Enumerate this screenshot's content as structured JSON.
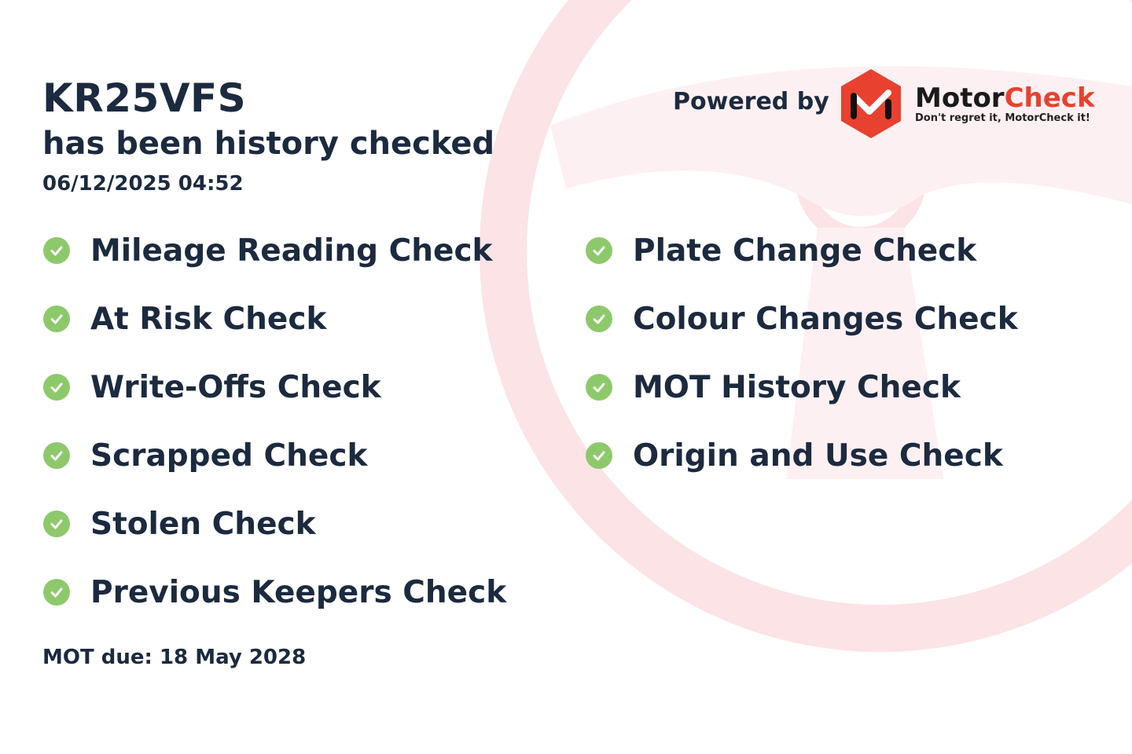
{
  "header": {
    "plate": "KR25VFS",
    "subtitle": "has been history checked",
    "datetime": "06/12/2025 04:52"
  },
  "branding": {
    "powered_by": "Powered by",
    "brand_part1": "Motor",
    "brand_part2": "Check",
    "tagline": "Don't regret it, MotorCheck it!",
    "brand_color": "#e8412f",
    "watermark_color": "#fbe3e6"
  },
  "checks_left": [
    {
      "label": "Mileage Reading Check"
    },
    {
      "label": "At Risk Check"
    },
    {
      "label": "Write-Offs Check"
    },
    {
      "label": "Scrapped Check"
    },
    {
      "label": "Stolen Check"
    },
    {
      "label": "Previous Keepers Check"
    }
  ],
  "checks_right": [
    {
      "label": "Plate Change Check"
    },
    {
      "label": "Colour Changes Check"
    },
    {
      "label": "MOT History Check"
    },
    {
      "label": "Origin and Use Check"
    }
  ],
  "check_icon": "check-circle-icon",
  "check_color": "#8dc96b",
  "footer": {
    "mot_due": "MOT due: 18 May 2028"
  }
}
